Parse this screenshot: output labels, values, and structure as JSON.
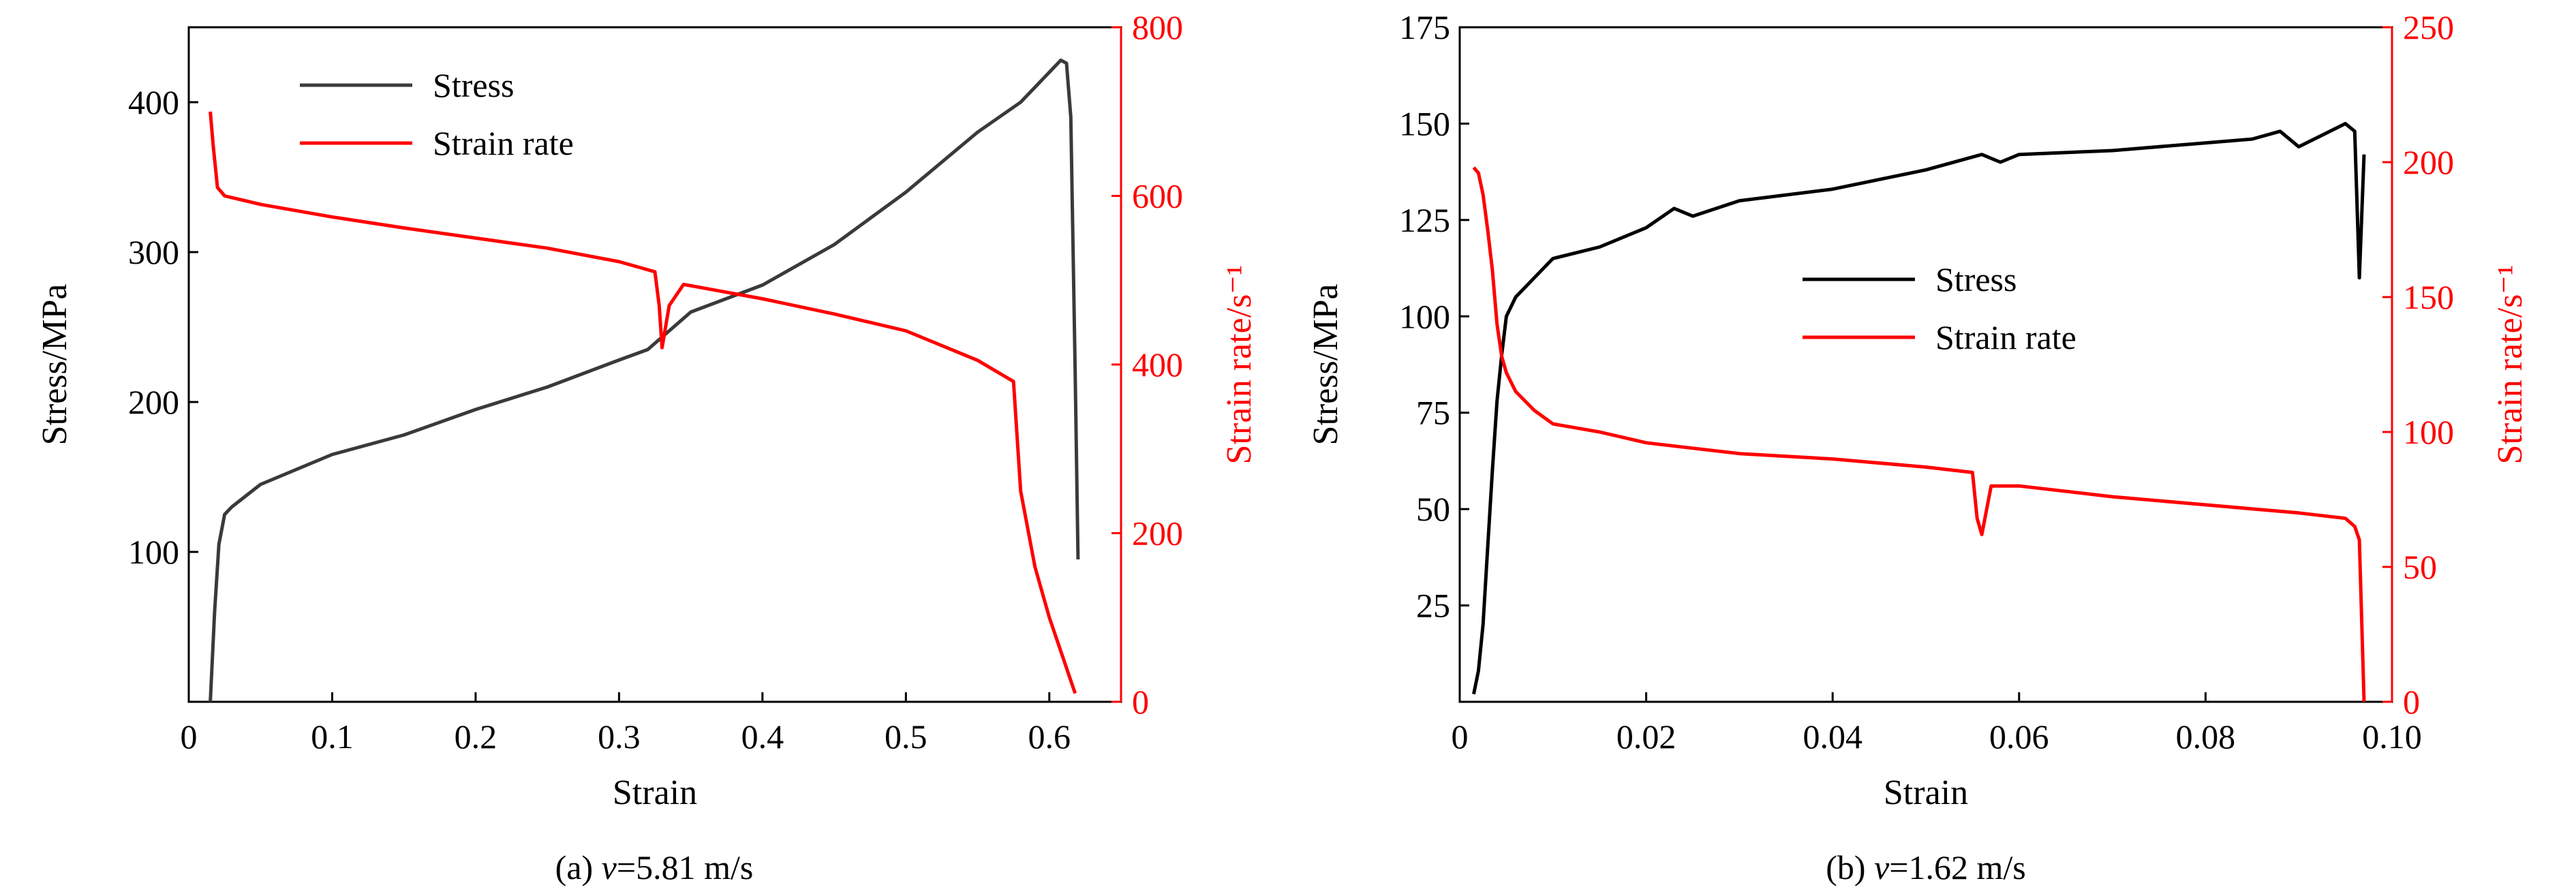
{
  "colors": {
    "stress": "#3a3a3a",
    "stress_b": "#000000",
    "strain_rate": "#ff0000",
    "strain_rate_axis": "#ff0000"
  },
  "chart_data": [
    {
      "type": "line",
      "caption_prefix": "(a) ",
      "caption_var": "v",
      "caption_value": "=5.81 m/s",
      "xlabel": "Strain",
      "ylabel": "Stress/MPa",
      "y2label": "Strain rate/s⁻¹",
      "xlim": [
        0,
        0.65
      ],
      "ylim": [
        0,
        450
      ],
      "y2lim": [
        0,
        800
      ],
      "xticks": [
        0,
        0.1,
        0.2,
        0.3,
        0.4,
        0.5,
        0.6
      ],
      "xtick_labels": [
        "0",
        "0.1",
        "0.2",
        "0.3",
        "0.4",
        "0.5",
        "0.6"
      ],
      "yticks": [
        100,
        200,
        300,
        400
      ],
      "ytick_labels": [
        "100",
        "200",
        "300",
        "400"
      ],
      "y2ticks": [
        0,
        200,
        400,
        600,
        800
      ],
      "y2tick_labels": [
        "0",
        "200",
        "400",
        "600",
        "800"
      ],
      "legend_position": "top-left",
      "series": [
        {
          "name": "Stress",
          "axis": "left",
          "x": [
            0.015,
            0.018,
            0.021,
            0.025,
            0.03,
            0.05,
            0.1,
            0.15,
            0.2,
            0.25,
            0.3,
            0.32,
            0.35,
            0.4,
            0.45,
            0.5,
            0.55,
            0.58,
            0.6,
            0.608,
            0.612,
            0.615,
            0.618,
            0.62
          ],
          "y": [
            0,
            60,
            105,
            125,
            130,
            145,
            165,
            178,
            195,
            210,
            228,
            235,
            260,
            278,
            305,
            340,
            380,
            400,
            420,
            428,
            426,
            390,
            220,
            95
          ]
        },
        {
          "name": "Strain rate",
          "axis": "right",
          "x": [
            0.015,
            0.017,
            0.02,
            0.025,
            0.05,
            0.1,
            0.15,
            0.2,
            0.25,
            0.3,
            0.325,
            0.328,
            0.33,
            0.335,
            0.345,
            0.4,
            0.45,
            0.5,
            0.55,
            0.57,
            0.575,
            0.58,
            0.59,
            0.6,
            0.605,
            0.61,
            0.615,
            0.618
          ],
          "y": [
            700,
            660,
            610,
            600,
            590,
            575,
            562,
            550,
            538,
            522,
            510,
            470,
            420,
            470,
            495,
            478,
            460,
            440,
            405,
            385,
            380,
            250,
            160,
            100,
            75,
            50,
            25,
            10
          ]
        }
      ]
    },
    {
      "type": "line",
      "caption_prefix": "(b) ",
      "caption_var": "v",
      "caption_value": "=1.62 m/s",
      "xlabel": "Strain",
      "ylabel": "Stress/MPa",
      "y2label": "Strain rate/s⁻¹",
      "xlim": [
        0,
        0.1
      ],
      "ylim": [
        0,
        175
      ],
      "y2lim": [
        0,
        250
      ],
      "xticks": [
        0,
        0.02,
        0.04,
        0.06,
        0.08,
        0.1
      ],
      "xtick_labels": [
        "0",
        "0.02",
        "0.04",
        "0.06",
        "0.08",
        "0.10"
      ],
      "yticks": [
        25,
        50,
        75,
        100,
        125,
        150,
        175
      ],
      "ytick_labels": [
        "25",
        "50",
        "75",
        "100",
        "125",
        "150",
        "175"
      ],
      "y2ticks": [
        0,
        50,
        100,
        150,
        200,
        250
      ],
      "y2tick_labels": [
        "0",
        "50",
        "100",
        "150",
        "200",
        "250"
      ],
      "legend_position": "center",
      "series": [
        {
          "name": "Stress",
          "axis": "left",
          "x": [
            0.0015,
            0.002,
            0.0025,
            0.003,
            0.0035,
            0.004,
            0.0045,
            0.005,
            0.006,
            0.008,
            0.01,
            0.015,
            0.02,
            0.023,
            0.025,
            0.03,
            0.04,
            0.05,
            0.056,
            0.058,
            0.06,
            0.07,
            0.08,
            0.085,
            0.088,
            0.09,
            0.095,
            0.096,
            0.0965,
            0.097
          ],
          "y": [
            2,
            8,
            20,
            40,
            60,
            78,
            90,
            100,
            105,
            110,
            115,
            118,
            123,
            128,
            126,
            130,
            133,
            138,
            142,
            140,
            142,
            143,
            145,
            146,
            148,
            144,
            150,
            148,
            110,
            142
          ]
        },
        {
          "name": "Strain rate",
          "axis": "right",
          "x": [
            0.0015,
            0.002,
            0.0025,
            0.003,
            0.0035,
            0.004,
            0.0045,
            0.005,
            0.006,
            0.008,
            0.01,
            0.015,
            0.02,
            0.025,
            0.03,
            0.04,
            0.05,
            0.055,
            0.0555,
            0.056,
            0.057,
            0.06,
            0.07,
            0.08,
            0.09,
            0.095,
            0.096,
            0.0965,
            0.097
          ],
          "y": [
            198,
            196,
            188,
            175,
            160,
            140,
            128,
            122,
            115,
            108,
            103,
            100,
            96,
            94,
            92,
            90,
            87,
            85,
            68,
            62,
            80,
            80,
            76,
            73,
            70,
            68,
            65,
            60,
            0
          ]
        }
      ]
    }
  ]
}
